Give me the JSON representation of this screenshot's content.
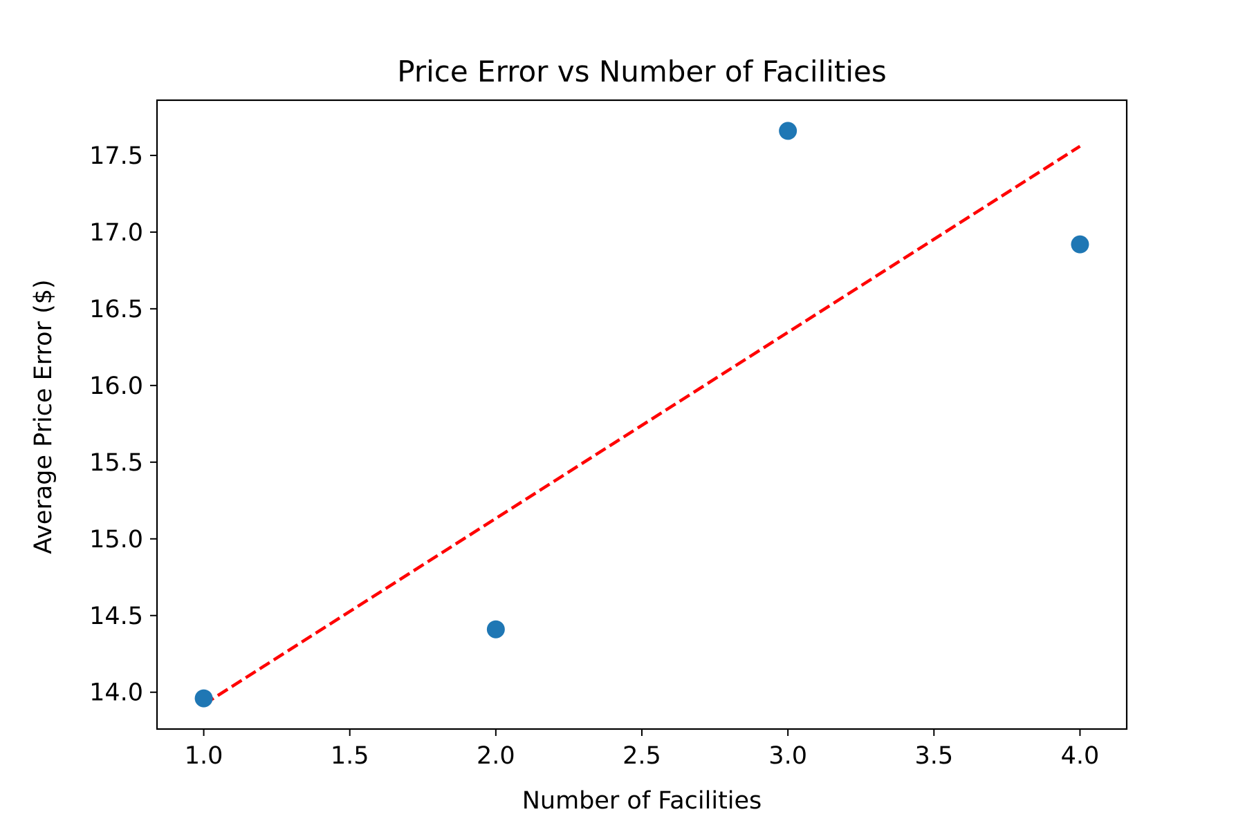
{
  "chart_data": {
    "type": "scatter",
    "title": "Price Error vs Number of Facilities",
    "xlabel": "Number of Facilities",
    "ylabel": "Average Price Error ($)",
    "xlim": [
      0.84,
      4.16
    ],
    "ylim": [
      13.76,
      17.86
    ],
    "x_ticks": [
      1.0,
      1.5,
      2.0,
      2.5,
      3.0,
      3.5,
      4.0
    ],
    "x_tick_labels": [
      "1.0",
      "1.5",
      "2.0",
      "2.5",
      "3.0",
      "3.5",
      "4.0"
    ],
    "y_ticks": [
      14.0,
      14.5,
      15.0,
      15.5,
      16.0,
      16.5,
      17.0,
      17.5
    ],
    "y_tick_labels": [
      "14.0",
      "14.5",
      "15.0",
      "15.5",
      "16.0",
      "16.5",
      "17.0",
      "17.5"
    ],
    "grid": false,
    "series": [
      {
        "type": "scatter",
        "x": [
          1,
          2,
          3,
          4
        ],
        "y": [
          13.96,
          14.41,
          17.66,
          16.92
        ],
        "color": "#1f77b4"
      },
      {
        "type": "line",
        "style": "dashed",
        "x": [
          1,
          4
        ],
        "y": [
          13.92,
          17.56
        ],
        "color": "#ff0000"
      }
    ]
  }
}
